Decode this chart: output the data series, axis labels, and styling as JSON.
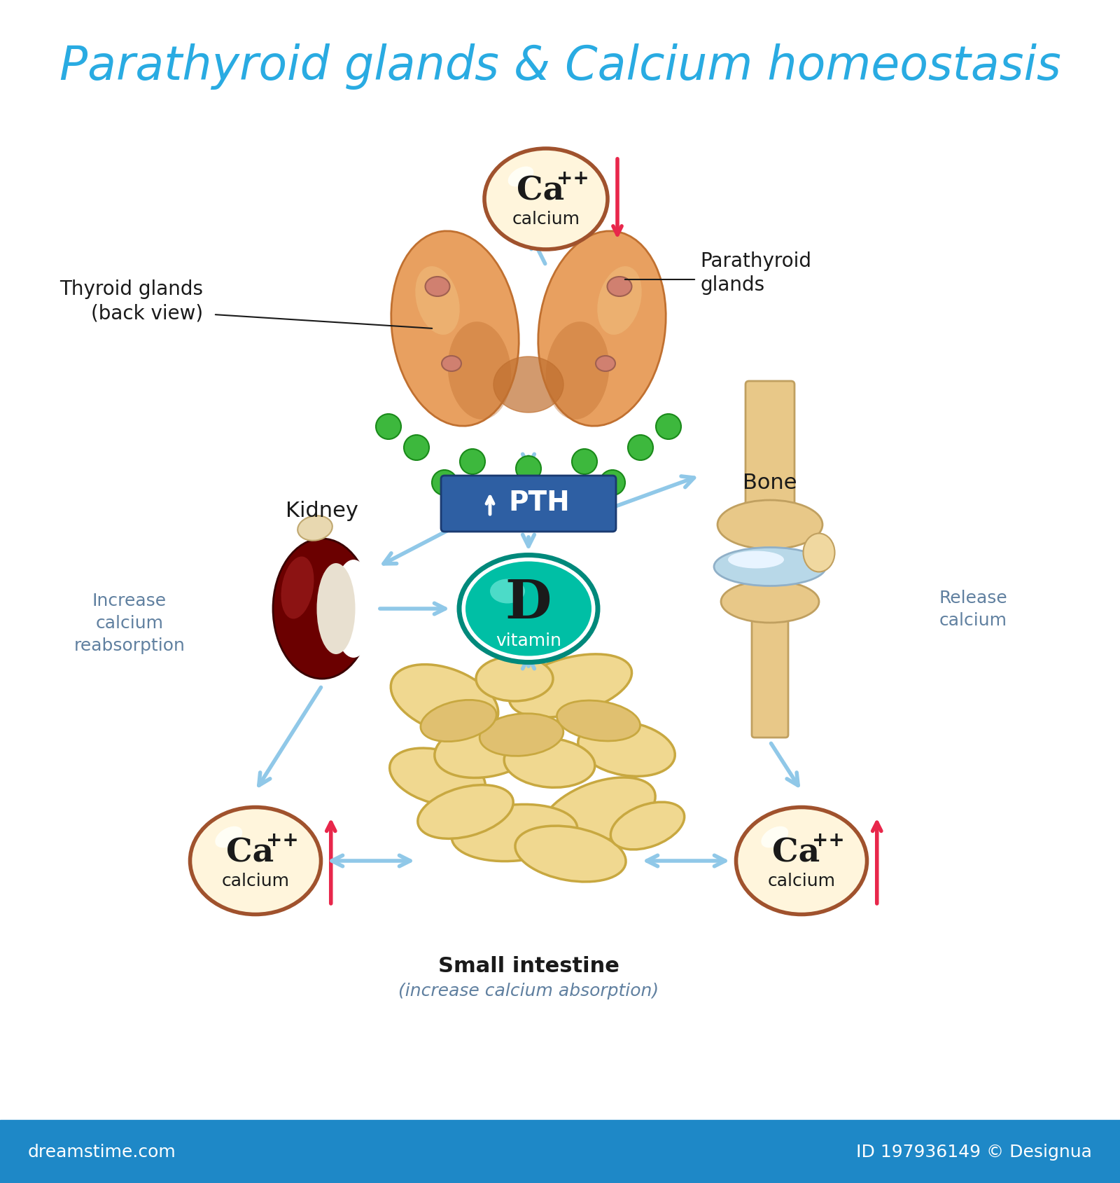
{
  "title": "Parathyroid glands & Calcium homeostasis",
  "title_color": "#29ABE2",
  "title_fontsize": 48,
  "bg_color": "#FFFFFF",
  "footer_bg": "#1E88C7",
  "footer_text_left": "dreamstime.com",
  "footer_text_right": "ID 197936149 © Designua",
  "footer_color": "#FFFFFF",
  "arrow_color": "#90C8E8",
  "pth_box_color": "#2E5FA3",
  "pth_text_color": "#FFFFFF",
  "ca_circle_fill": "#FFF5DC",
  "ca_circle_edge": "#A0522D",
  "ca_text_color": "#1A1A1A",
  "calcium_label": "calcium",
  "red_arrow_color": "#E8274B",
  "green_dots_color": "#3DB83D",
  "label_color": "#6080A0",
  "black_label": "#1A1A1A",
  "thyroid_fill": "#E8A060",
  "thyroid_dark": "#C07030",
  "thyroid_light": "#F0C080",
  "kidney_dark": "#6B0000",
  "kidney_mid": "#9B2020",
  "kidney_light": "#C04040",
  "kidney_inner": "#E8E0D0",
  "bone_fill": "#E8C888",
  "bone_cartilage": "#B8D8E8",
  "vitamin_d_fill": "#00BFA5",
  "vitamin_d_edge": "#00897B",
  "intestine_fill": "#F0D890",
  "intestine_edge": "#C8A840"
}
